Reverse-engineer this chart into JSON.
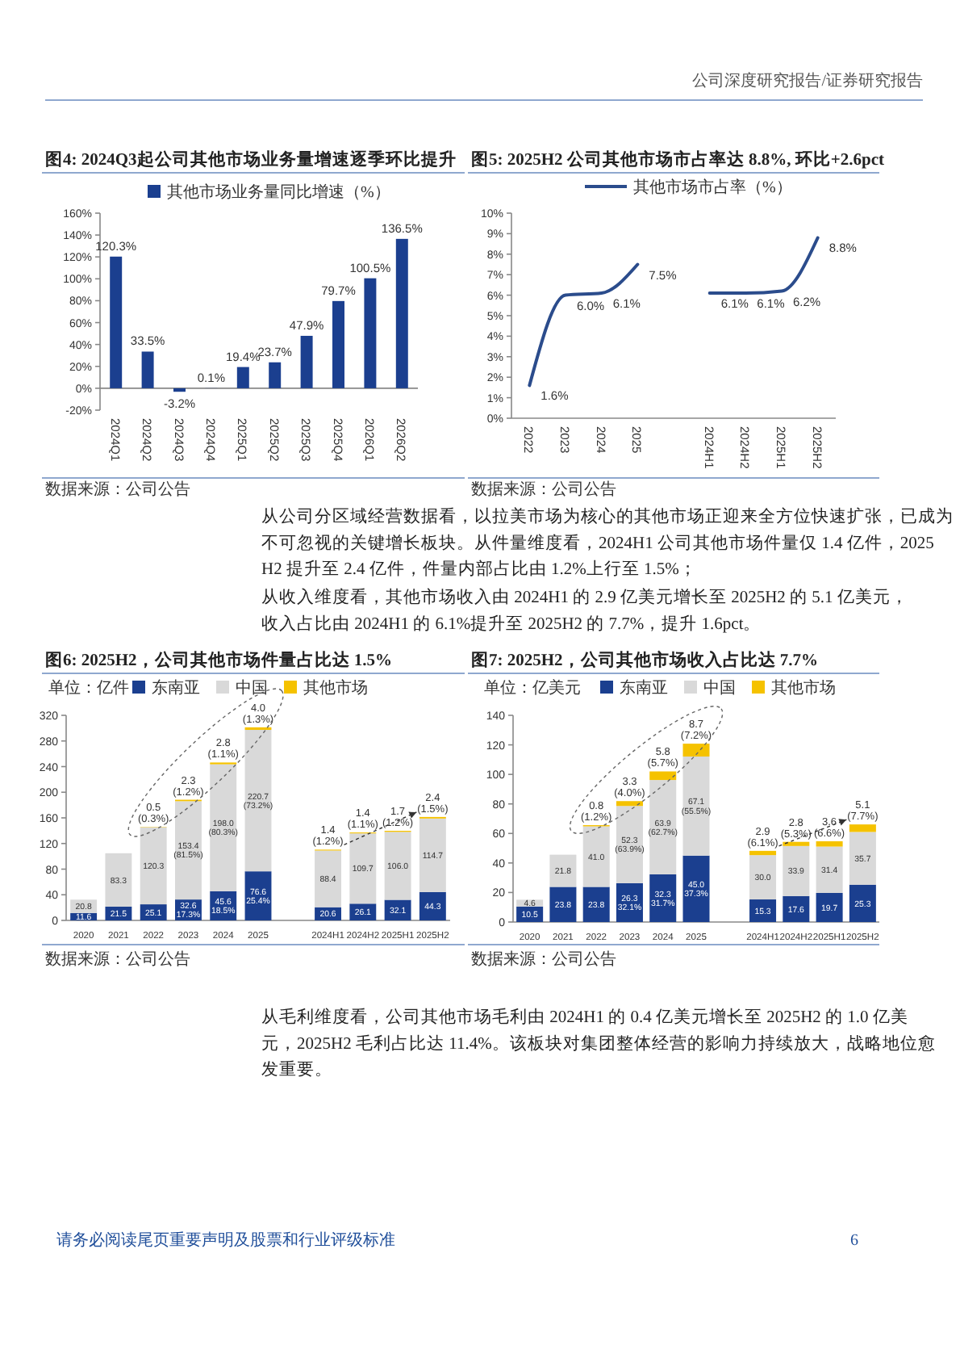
{
  "chart_data": [
    {
      "type": "bar",
      "title": "图4: 2024Q3起公司其他市场业务量增速逐季环比提升",
      "categories": [
        "2024Q1",
        "2024Q2",
        "2024Q3",
        "2024Q4",
        "2025Q1",
        "2025Q2",
        "2025Q3",
        "2025Q4",
        "2026Q1",
        "2026Q2"
      ],
      "series": [
        {
          "name": "其他市场业务量同比增速（%）",
          "color": "#1b3f8f",
          "values": [
            120.3,
            33.5,
            -3.2,
            0.1,
            19.4,
            23.7,
            47.9,
            79.7,
            100.5,
            136.5
          ],
          "value_labels": [
            "120.3%",
            "33.5%",
            "-3.2%",
            "0.1%",
            "19.4%",
            "23.7%",
            "47.9%",
            "79.7%",
            "100.5%",
            "136.5%"
          ]
        }
      ],
      "ylim": [
        -20,
        160
      ],
      "yticks": [
        {
          "value": -20,
          "label": "-20%"
        },
        {
          "value": 0,
          "label": "0%"
        },
        {
          "value": 20,
          "label": "20%"
        },
        {
          "value": 40,
          "label": "40%"
        },
        {
          "value": 60,
          "label": "60%"
        },
        {
          "value": 80,
          "label": "80%"
        },
        {
          "value": 100,
          "label": "100%"
        },
        {
          "value": 120,
          "label": "120%"
        },
        {
          "value": 140,
          "label": "140%"
        },
        {
          "value": 160,
          "label": "160%"
        }
      ],
      "legend": "top",
      "annotations": [
        "数据来源：公司公告"
      ]
    },
    {
      "type": "line",
      "title": "图5: 2025H2 公司其他市场市占率达 8.8%, 环比+2.6pct",
      "categories": [
        "2022",
        "2023",
        "2024",
        "2025",
        null,
        "2024H1",
        "2024H2",
        "2025H1",
        "2025H2"
      ],
      "series": [
        {
          "name": "其他市场市占率（%）",
          "color": "#2b4c8c",
          "values": [
            1.6,
            6.0,
            6.1,
            7.5,
            null,
            6.1,
            6.1,
            6.2,
            8.8
          ],
          "value_labels": [
            "1.6%",
            "6.0%",
            "6.1%",
            "7.5%",
            null,
            "6.1%",
            "6.1%",
            "6.2%",
            "8.8%"
          ]
        }
      ],
      "ylim": [
        0,
        10
      ],
      "yticks": [
        {
          "value": 0,
          "label": "0%"
        },
        {
          "value": 1,
          "label": "1%"
        },
        {
          "value": 2,
          "label": "2%"
        },
        {
          "value": 3,
          "label": "3%"
        },
        {
          "value": 4,
          "label": "4%"
        },
        {
          "value": 5,
          "label": "5%"
        },
        {
          "value": 6,
          "label": "6%"
        },
        {
          "value": 7,
          "label": "7%"
        },
        {
          "value": 8,
          "label": "8%"
        },
        {
          "value": 9,
          "label": "9%"
        },
        {
          "value": 10,
          "label": "10%"
        }
      ],
      "legend": "top",
      "annotations": [
        "数据来源：公司公告"
      ]
    },
    {
      "type": "bar",
      "stacked": true,
      "title": "图6: 2025H2，公司其他市场件量占比达 1.5%",
      "ylabel": "单位：亿件",
      "categories": [
        "2020",
        "2021",
        "2022",
        "2023",
        "2024",
        "2025",
        null,
        "2024H1",
        "2024H2",
        "2025H1",
        "2025H2"
      ],
      "series": [
        {
          "name": "东南亚",
          "color": "#1b3f8f",
          "values": [
            11.6,
            21.5,
            25.1,
            32.6,
            45.6,
            76.6,
            null,
            20.6,
            26.1,
            32.1,
            44.3
          ],
          "value_labels": [
            "11.6",
            "21.5",
            "25.1",
            "32.6\n17.3%",
            "45.6\n18.5%",
            "76.6\n25.4%",
            null,
            "20.6",
            "26.1",
            "32.1",
            "44.3"
          ]
        },
        {
          "name": "中国",
          "color": "#d9d9d9",
          "values": [
            20.8,
            83.3,
            120.3,
            153.4,
            198.0,
            220.7,
            null,
            88.4,
            109.7,
            106.0,
            114.7
          ],
          "value_labels": [
            "20.8",
            "83.3",
            "120.3",
            "153.4\n(81.5%)",
            "198.0\n(80.3%)",
            "220.7\n(73.2%)",
            null,
            "88.4",
            "109.7",
            "106.0",
            "114.7"
          ]
        },
        {
          "name": "其他市场",
          "color": "#f5c200",
          "values": [
            null,
            null,
            0.5,
            2.3,
            2.8,
            4.0,
            null,
            1.4,
            1.4,
            1.7,
            2.4
          ],
          "value_labels": [
            null,
            null,
            "0.5\n(0.3%)",
            "2.3\n(1.2%)",
            "2.8\n(1.1%)",
            "4.0\n(1.3%)",
            null,
            "1.4\n(1.2%)",
            "1.4\n(1.1%)",
            "1.7\n(1.2%)",
            "2.4\n(1.5%)"
          ]
        }
      ],
      "ylim": [
        0,
        320
      ],
      "yticks": [
        0,
        40,
        80,
        120,
        160,
        200,
        240,
        280,
        320
      ],
      "legend": "top",
      "annotations": [
        "数据来源：公司公告"
      ]
    },
    {
      "type": "bar",
      "stacked": true,
      "title": "图7: 2025H2，公司其他市场收入占比达 7.7%",
      "ylabel": "单位：亿美元",
      "categories": [
        "2020",
        "2021",
        "2022",
        "2023",
        "2024",
        "2025",
        null,
        "2024H1",
        "2024H2",
        "2025H1",
        "2025H2"
      ],
      "series": [
        {
          "name": "东南亚",
          "color": "#1b3f8f",
          "values": [
            10.5,
            23.8,
            23.8,
            26.3,
            32.3,
            45.0,
            null,
            15.3,
            17.6,
            19.7,
            25.3
          ],
          "value_labels": [
            "10.5",
            "23.8",
            "23.8",
            "26.3\n32.1%",
            "32.3\n31.7%",
            "45.0\n37.3%",
            null,
            "15.3",
            "17.6",
            "19.7",
            "25.3"
          ]
        },
        {
          "name": "中国",
          "color": "#d9d9d9",
          "values": [
            4.6,
            21.8,
            41.0,
            52.3,
            63.9,
            67.1,
            null,
            30.0,
            33.9,
            31.4,
            35.7
          ],
          "value_labels": [
            "4.6",
            "21.8",
            "41.0",
            "52.3\n(63.9%)",
            "63.9\n(62.7%)",
            "67.1\n(55.5%)",
            null,
            "30.0",
            "33.9",
            "31.4",
            "35.7"
          ]
        },
        {
          "name": "其他市场",
          "color": "#f5c200",
          "values": [
            null,
            null,
            0.8,
            3.3,
            5.8,
            8.7,
            null,
            2.9,
            2.8,
            3.6,
            5.1
          ],
          "value_labels": [
            null,
            null,
            "0.8\n(1.2%)",
            "3.3\n(4.0%)",
            "5.8\n(5.7%)",
            "8.7\n(7.2%)",
            null,
            "2.9\n(6.1%)",
            "2.8\n(5.3%)",
            "3.6\n(6.6%)",
            "5.1\n(7.7%)"
          ]
        }
      ],
      "ylim": [
        0,
        140
      ],
      "yticks": [
        0,
        20,
        40,
        60,
        80,
        100,
        120,
        140
      ],
      "legend": "top",
      "annotations": [
        "数据来源：公司公告"
      ]
    },
    {
      "type": "other",
      "annotations": [
        "公司深度研究报告/证券研究报告",
        "从公司分区域经营数据看，以拉美市场为核心的其他市场正迎来全方位快速扩张，已成为不可忽视的关键增长板块。从件量维度看，2024H1 公司其他市场件量仅 1.4 亿件，2025H2 提升至 2.4 亿件，件量内部占比由 1.2%上行至 1.5%；",
        "从收入维度看，其他市场收入由 2024H1 的 2.9 亿美元增长至 2025H2 的 5.1 亿美元，收入占比由 2024H1 的 6.1%提升至 2025H2 的 7.7%，提升 1.6pct。",
        "从毛利维度看，公司其他市场毛利由 2024H1 的 0.4 亿美元增长至 2025H2 的 1.0 亿美元，2025H2 毛利占比达 11.4%。该板块对集团整体经营的影响力持续放大，战略地位愈发重要。",
        "请务必阅读尾页重要声明及股票和行业评级标准",
        "6"
      ]
    }
  ]
}
